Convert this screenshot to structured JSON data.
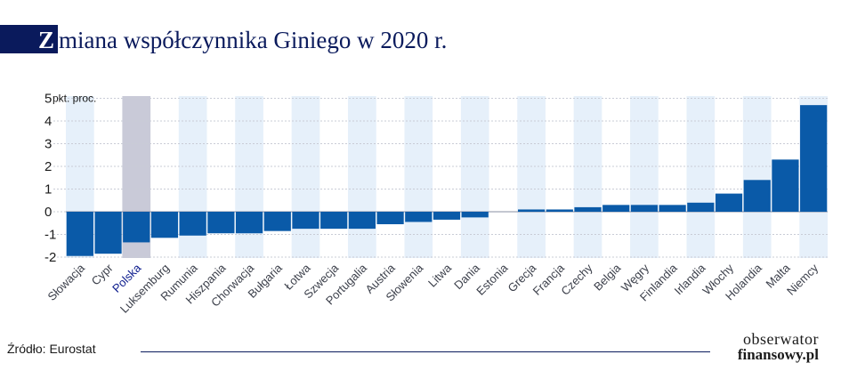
{
  "title": {
    "first_letter": "Z",
    "rest": "miana współczynnika Giniego w 2020 r."
  },
  "chart_data": {
    "type": "bar",
    "ylabel": "pkt. proc.",
    "ylim": [
      -2,
      5
    ],
    "yticks": [
      -2,
      -1,
      0,
      1,
      2,
      3,
      4,
      5
    ],
    "grid": true,
    "highlight_color": "#c9cad8",
    "bar_color": "#0a5aa8",
    "stripe_color": "#e6f0fa",
    "highlight_label_color": "#0a1a8c",
    "highlight_category": "Polska",
    "categories": [
      "Słowacja",
      "Cypr",
      "Polska",
      "Luksemburg",
      "Rumunia",
      "Hiszpania",
      "Chorwacja",
      "Bułgaria",
      "Łotwa",
      "Szwecja",
      "Portugalia",
      "Austria",
      "Słowenia",
      "Litwa",
      "Dania",
      "Estonia",
      "Grecja",
      "Francja",
      "Czechy",
      "Belgia",
      "Węgry",
      "Finlandia",
      "Irlandia",
      "Włochy",
      "Holandia",
      "Malta",
      "Niemcy"
    ],
    "values": [
      -1.95,
      -1.85,
      -1.35,
      -1.15,
      -1.05,
      -0.95,
      -0.95,
      -0.85,
      -0.75,
      -0.75,
      -0.75,
      -0.55,
      -0.45,
      -0.35,
      -0.25,
      0,
      0.1,
      0.1,
      0.2,
      0.3,
      0.3,
      0.3,
      0.4,
      0.8,
      1.4,
      2.3,
      4.7
    ]
  },
  "footer": {
    "source": "Źródło: Eurostat",
    "logo_top": "obserwator",
    "logo_bottom": "finansowy.pl"
  }
}
